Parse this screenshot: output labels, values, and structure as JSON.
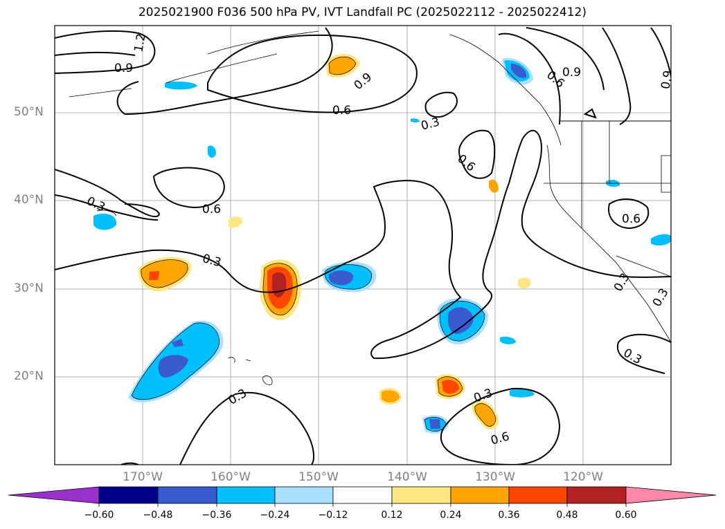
{
  "title": "2025021900 F036 500 hPa PV, IVT Landfall PC (2025022112 - 2025022412)",
  "lat_labels": [
    "50°N",
    "40°N",
    "30°N",
    "20°N"
  ],
  "lon_labels": [
    "170°W",
    "160°W",
    "150°W",
    "140°W",
    "130°W",
    "120°W"
  ],
  "contour_labels": [
    "1.2",
    "0.9",
    "0.9",
    "0.9",
    "0.9",
    "0.6",
    "0.6",
    "0.6",
    "0.6",
    "0.6",
    "0.6",
    "0.3",
    "0.3",
    "0.3",
    "0.3",
    "0.3",
    "0.3",
    "0.3",
    "0.3"
  ],
  "colorbar": {
    "ticks": [
      "−0.60",
      "−0.48",
      "−0.36",
      "−0.24",
      "−0.12",
      "0.12",
      "0.24",
      "0.36",
      "0.48",
      "0.60"
    ],
    "colors": [
      "#9932cc",
      "#00008b",
      "#3a5bd0",
      "#00bfff",
      "#aadfff",
      "#ffffff",
      "#ffe680",
      "#ffa500",
      "#ff4500",
      "#b22222",
      "#ff88aa"
    ]
  }
}
